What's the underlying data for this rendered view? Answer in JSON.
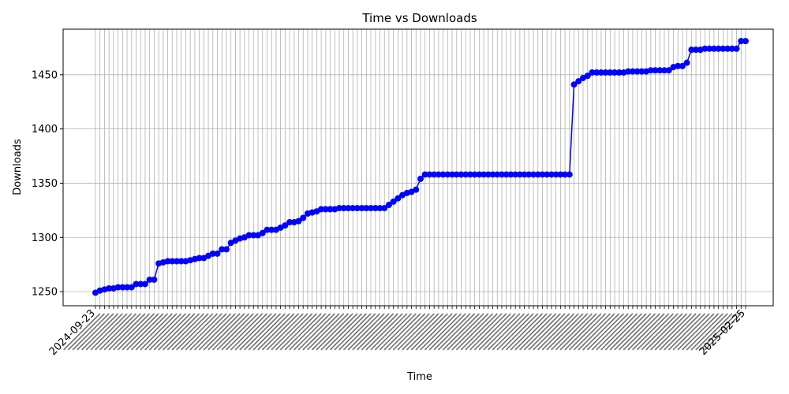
{
  "chart_data": {
    "type": "line",
    "title": "Time vs Downloads",
    "xlabel": "Time",
    "ylabel": "Downloads",
    "y_ticks": [
      1250,
      1300,
      1350,
      1400,
      1450
    ],
    "ylim": [
      1237,
      1492
    ],
    "grid": true,
    "legend": "none",
    "colors": {
      "series": "#0000ff",
      "grid": "#b0b0b0",
      "axis": "#000000"
    },
    "x_tick_labels_legible": [
      "2024-09-23",
      "2025-02-25"
    ],
    "series": [
      {
        "values": [
          1249,
          1251,
          1252,
          1253,
          1253,
          1254,
          1254,
          1254,
          1254,
          1257,
          1257,
          1257,
          1261,
          1261,
          1276,
          1277,
          1278,
          1278,
          1278,
          1278,
          1278,
          1279,
          1280,
          1281,
          1281,
          1283,
          1285,
          1285,
          1289,
          1289,
          1295,
          1297,
          1299,
          1300,
          1302,
          1302,
          1302,
          1304,
          1307,
          1307,
          1307,
          1309,
          1311,
          1314,
          1314,
          1315,
          1318,
          1322,
          1323,
          1324,
          1326,
          1326,
          1326,
          1326,
          1327,
          1327,
          1327,
          1327,
          1327,
          1327,
          1327,
          1327,
          1327,
          1327,
          1327,
          1330,
          1333,
          1336,
          1339,
          1341,
          1342,
          1344,
          1354,
          1358,
          1358,
          1358,
          1358,
          1358,
          1358,
          1358,
          1358,
          1358,
          1358,
          1358,
          1358,
          1358,
          1358,
          1358,
          1358,
          1358,
          1358,
          1358,
          1358,
          1358,
          1358,
          1358,
          1358,
          1358,
          1358,
          1358,
          1358,
          1358,
          1358,
          1358,
          1358,
          1358,
          1441,
          1444,
          1447,
          1449,
          1452,
          1452,
          1452,
          1452,
          1452,
          1452,
          1452,
          1452,
          1453,
          1453,
          1453,
          1453,
          1453,
          1454,
          1454,
          1454,
          1454,
          1454,
          1457,
          1458,
          1458,
          1461,
          1473,
          1473,
          1473,
          1474,
          1474,
          1474,
          1474,
          1474,
          1474,
          1474,
          1474,
          1481,
          1481
        ]
      }
    ]
  }
}
